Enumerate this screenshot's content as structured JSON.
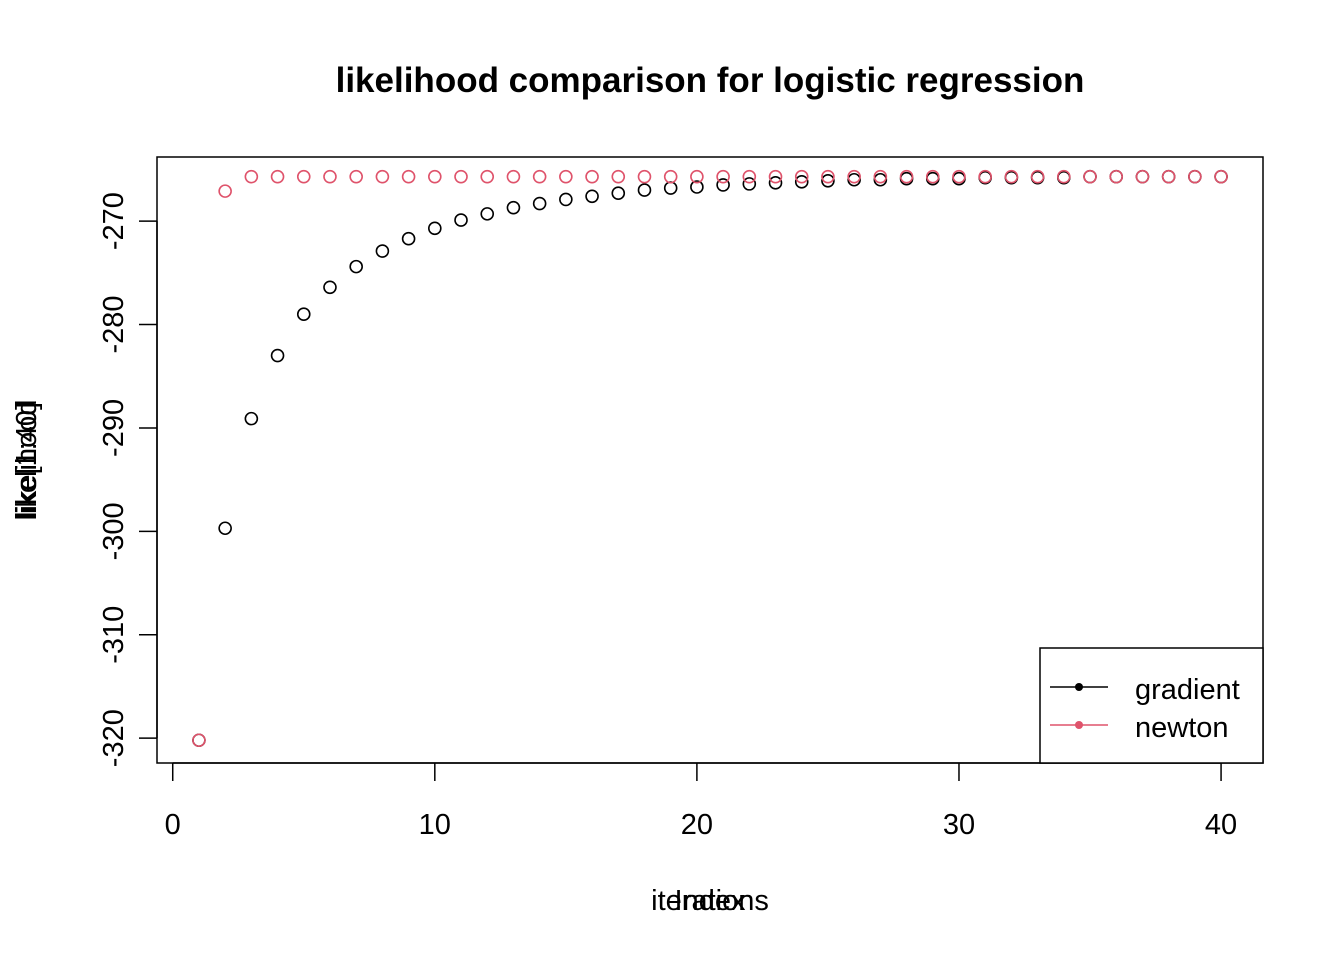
{
  "chart_data": {
    "type": "scatter",
    "title": "likelihood comparison for logistic regression",
    "xlabel_layer1": "iterations",
    "xlabel_layer2": "Index",
    "ylabel_layer1": "like[1:40]",
    "ylabel_layer2": "likelihood",
    "xlim": [
      -0.6,
      41.6
    ],
    "ylim": [
      -322.4,
      -263.8
    ],
    "xticks": [
      0,
      10,
      20,
      30,
      40
    ],
    "xtick_labels": [
      "0",
      "10",
      "20",
      "30",
      "40"
    ],
    "yticks": [
      -320,
      -310,
      -300,
      -290,
      -280,
      -270
    ],
    "ytick_labels": [
      "-320",
      "-310",
      "-300",
      "-290",
      "-280",
      "-270"
    ],
    "legend_position": "bottom-right",
    "series": [
      {
        "name": "gradient",
        "color": "#000000",
        "x": [
          1,
          2,
          3,
          4,
          5,
          6,
          7,
          8,
          9,
          10,
          11,
          12,
          13,
          14,
          15,
          16,
          17,
          18,
          19,
          20,
          21,
          22,
          23,
          24,
          25,
          26,
          27,
          28,
          29,
          30,
          31,
          32,
          33,
          34,
          35,
          36,
          37,
          38,
          39,
          40
        ],
        "values": [
          -320.2,
          -299.7,
          -289.1,
          -283.0,
          -279.0,
          -276.4,
          -274.4,
          -272.9,
          -271.7,
          -270.7,
          -269.9,
          -269.3,
          -268.7,
          -268.3,
          -267.9,
          -267.6,
          -267.3,
          -267.0,
          -266.8,
          -266.7,
          -266.5,
          -266.4,
          -266.3,
          -266.2,
          -266.1,
          -266.0,
          -266.0,
          -265.9,
          -265.9,
          -265.9,
          -265.8,
          -265.8,
          -265.8,
          -265.8,
          -265.7,
          -265.7,
          -265.7,
          -265.7,
          -265.7,
          -265.7
        ]
      },
      {
        "name": "newton",
        "color": "#DF536B",
        "x": [
          1,
          2,
          3,
          4,
          5,
          6,
          7,
          8,
          9,
          10,
          11,
          12,
          13,
          14,
          15,
          16,
          17,
          18,
          19,
          20,
          21,
          22,
          23,
          24,
          25,
          26,
          27,
          28,
          29,
          30,
          31,
          32,
          33,
          34,
          35,
          36,
          37,
          38,
          39,
          40
        ],
        "values": [
          -320.2,
          -267.1,
          -265.7,
          -265.7,
          -265.7,
          -265.7,
          -265.7,
          -265.7,
          -265.7,
          -265.7,
          -265.7,
          -265.7,
          -265.7,
          -265.7,
          -265.7,
          -265.7,
          -265.7,
          -265.7,
          -265.7,
          -265.7,
          -265.7,
          -265.7,
          -265.7,
          -265.7,
          -265.7,
          -265.7,
          -265.7,
          -265.7,
          -265.7,
          -265.7,
          -265.7,
          -265.7,
          -265.7,
          -265.7,
          -265.7,
          -265.7,
          -265.7,
          -265.7,
          -265.7,
          -265.7
        ]
      }
    ]
  }
}
